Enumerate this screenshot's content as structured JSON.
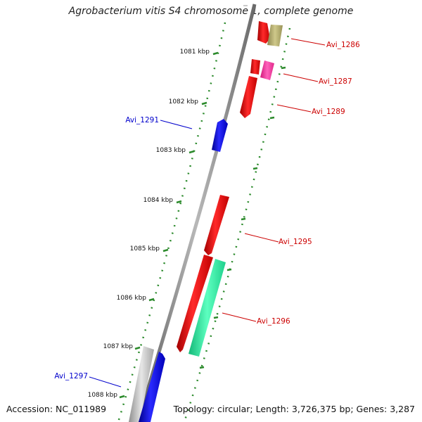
{
  "title": "Agrobacterium vitis S4 chromosome 1, complete genome",
  "accession": "Accession: NC_011989",
  "summary": "Topology: circular; Length: 3,726,375 bp; Genes: 3,287",
  "scale_labels": [
    "1081 kbp",
    "1082 kbp",
    "1083 kbp",
    "1084 kbp",
    "1085 kbp",
    "1086 kbp",
    "1087 kbp",
    "1088 kbp"
  ],
  "gene_labels": [
    "Avi_1286",
    "Avi_1287",
    "Avi_1289",
    "Avi_1291",
    "Avi_1295",
    "Avi_1296",
    "Avi_1297"
  ],
  "colors": {
    "forward_red": "#e31010",
    "reverse_blue": "#1010e6",
    "label_red": "#cc0000",
    "label_blue": "#0000cc",
    "tick_green": "#2b8a2b",
    "olive": "#b4ad6a",
    "magenta": "#ff3fa6",
    "teal": "#2cf0a0",
    "grey": "#bdbdbd",
    "backbone": "#7a7a7a"
  }
}
